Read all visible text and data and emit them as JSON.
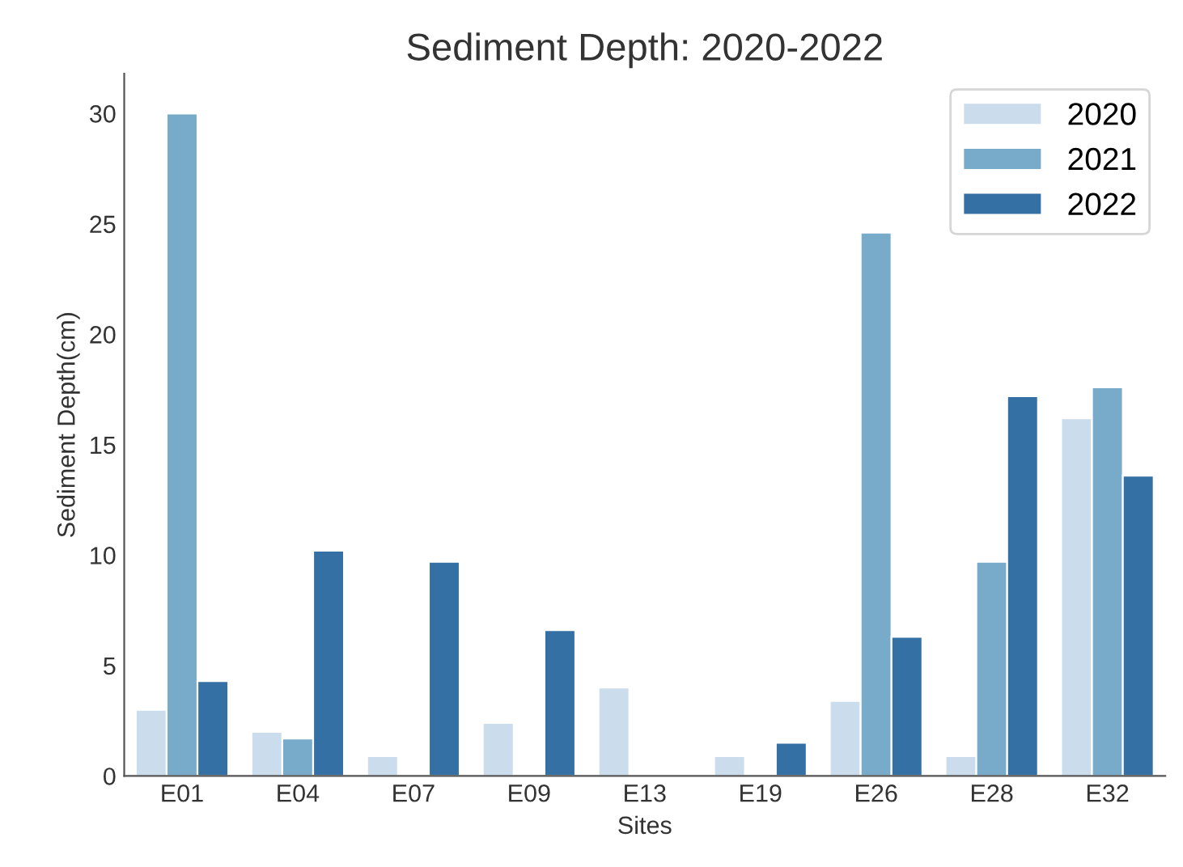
{
  "chart_data": {
    "type": "bar",
    "title": "Sediment Depth: 2020-2022",
    "xlabel": "Sites",
    "ylabel": "Sediment Depth(cm)",
    "categories": [
      "E01",
      "E04",
      "E07",
      "E09",
      "E13",
      "E19",
      "E26",
      "E28",
      "E32"
    ],
    "series": [
      {
        "name": "2020",
        "color": "#cbdcec",
        "values": [
          3.0,
          2.0,
          0.9,
          2.4,
          4.0,
          0.9,
          3.4,
          0.9,
          16.2
        ]
      },
      {
        "name": "2021",
        "color": "#78aac9",
        "values": [
          30.0,
          1.7,
          null,
          null,
          null,
          null,
          24.6,
          9.7,
          17.6
        ]
      },
      {
        "name": "2022",
        "color": "#3470a3",
        "values": [
          4.3,
          10.2,
          9.7,
          6.6,
          null,
          1.5,
          6.3,
          17.2,
          13.6
        ]
      }
    ],
    "ylim": [
      0,
      31.8
    ],
    "yticks": [
      0,
      5,
      10,
      15,
      20,
      25,
      30
    ],
    "grid": false,
    "legend": "top right"
  }
}
